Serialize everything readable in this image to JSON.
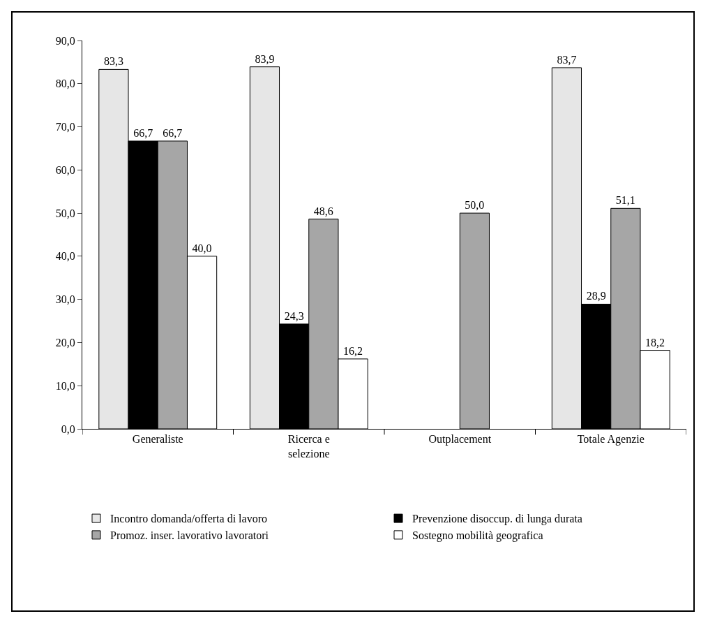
{
  "chart_data": {
    "type": "bar",
    "categories": [
      "Generaliste",
      "Ricerca e selezione",
      "Outplacement",
      "Totale Agenzie"
    ],
    "series": [
      {
        "name": "Incontro domanda/offerta di lavoro",
        "color": "#e6e6e6",
        "values": [
          83.3,
          83.9,
          null,
          83.7
        ],
        "value_labels": [
          "83,3",
          "83,9",
          null,
          "83,7"
        ]
      },
      {
        "name": "Prevenzione disoccup. di lunga durata",
        "color": "#000000",
        "values": [
          66.7,
          24.3,
          null,
          28.9
        ],
        "value_labels": [
          "66,7",
          "24,3",
          null,
          "28,9"
        ]
      },
      {
        "name": "Promoz. inser. lavorativo lavoratori",
        "color": "#a6a6a6",
        "values": [
          66.7,
          48.6,
          50.0,
          51.1
        ],
        "value_labels": [
          "66,7",
          "48,6",
          "50,0",
          "51,1"
        ]
      },
      {
        "name": "Sostegno mobilità geografica",
        "color": "#ffffff",
        "values": [
          40.0,
          16.2,
          null,
          18.2
        ],
        "value_labels": [
          "40,0",
          "16,2",
          null,
          "18,2"
        ]
      }
    ],
    "ylim": [
      0,
      90
    ],
    "yticks": [
      {
        "value": 0,
        "label": "0,0"
      },
      {
        "value": 10,
        "label": "10,0"
      },
      {
        "value": 20,
        "label": "20,0"
      },
      {
        "value": 30,
        "label": "30,0"
      },
      {
        "value": 40,
        "label": "40,0"
      },
      {
        "value": 50,
        "label": "50,0"
      },
      {
        "value": 60,
        "label": "60,0"
      },
      {
        "value": 70,
        "label": "70,0"
      },
      {
        "value": 80,
        "label": "80,0"
      },
      {
        "value": 90,
        "label": "90,0"
      }
    ],
    "grid": false,
    "legend": "bottom"
  }
}
